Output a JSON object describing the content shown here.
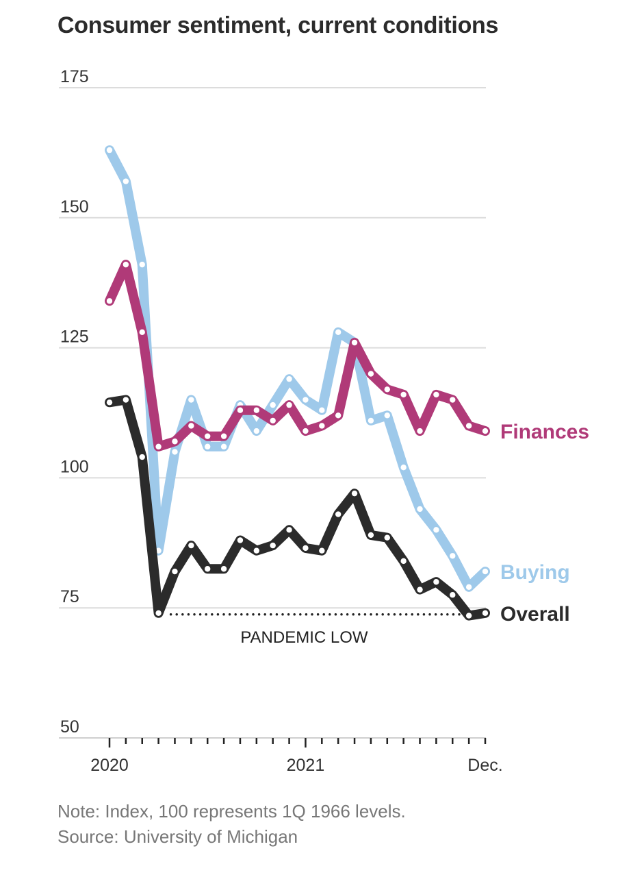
{
  "chart_data": {
    "type": "line",
    "title": "Consumer sentiment, current conditions",
    "ylim": [
      50,
      175
    ],
    "yticks": [
      "175",
      "150",
      "125",
      "100",
      "75",
      "50"
    ],
    "ytick_values": [
      175,
      150,
      125,
      100,
      75,
      50
    ],
    "grid": true,
    "x_start": "2020-01",
    "x_end": "2021-12",
    "x_tick_labels": [
      {
        "label": "2020",
        "month": 0
      },
      {
        "label": "2021",
        "month": 12
      },
      {
        "label": "Dec.",
        "month": 23
      }
    ],
    "series": [
      {
        "name": "Buying",
        "color": "#9ec9ea",
        "values": [
          163,
          157,
          141,
          86,
          105,
          115,
          106,
          106,
          114,
          109,
          114,
          119,
          115,
          113,
          128,
          126,
          111,
          112,
          102,
          94,
          90,
          85,
          79,
          82
        ]
      },
      {
        "name": "Finances",
        "color": "#b03a78",
        "values": [
          134,
          141,
          128,
          106,
          107,
          110,
          108,
          108,
          113,
          113,
          111,
          114,
          109,
          110,
          112,
          126,
          120,
          117,
          116,
          109,
          116,
          115,
          110,
          109
        ]
      },
      {
        "name": "Overall",
        "color": "#2b2b2b",
        "values": [
          114.5,
          115,
          104,
          74,
          82,
          87,
          82.5,
          82.5,
          88,
          86,
          87,
          90,
          86.5,
          86,
          93,
          97,
          89,
          88.5,
          84,
          78.5,
          80,
          77.5,
          73.5,
          74
        ]
      }
    ],
    "reference_line": {
      "value": 74,
      "label": "PANDEMIC LOW",
      "from_month": 3,
      "to_month": 21
    }
  },
  "footer": {
    "note": "Note: Index, 100 represents 1Q 1966 levels.",
    "source": "Source: University of Michigan"
  }
}
